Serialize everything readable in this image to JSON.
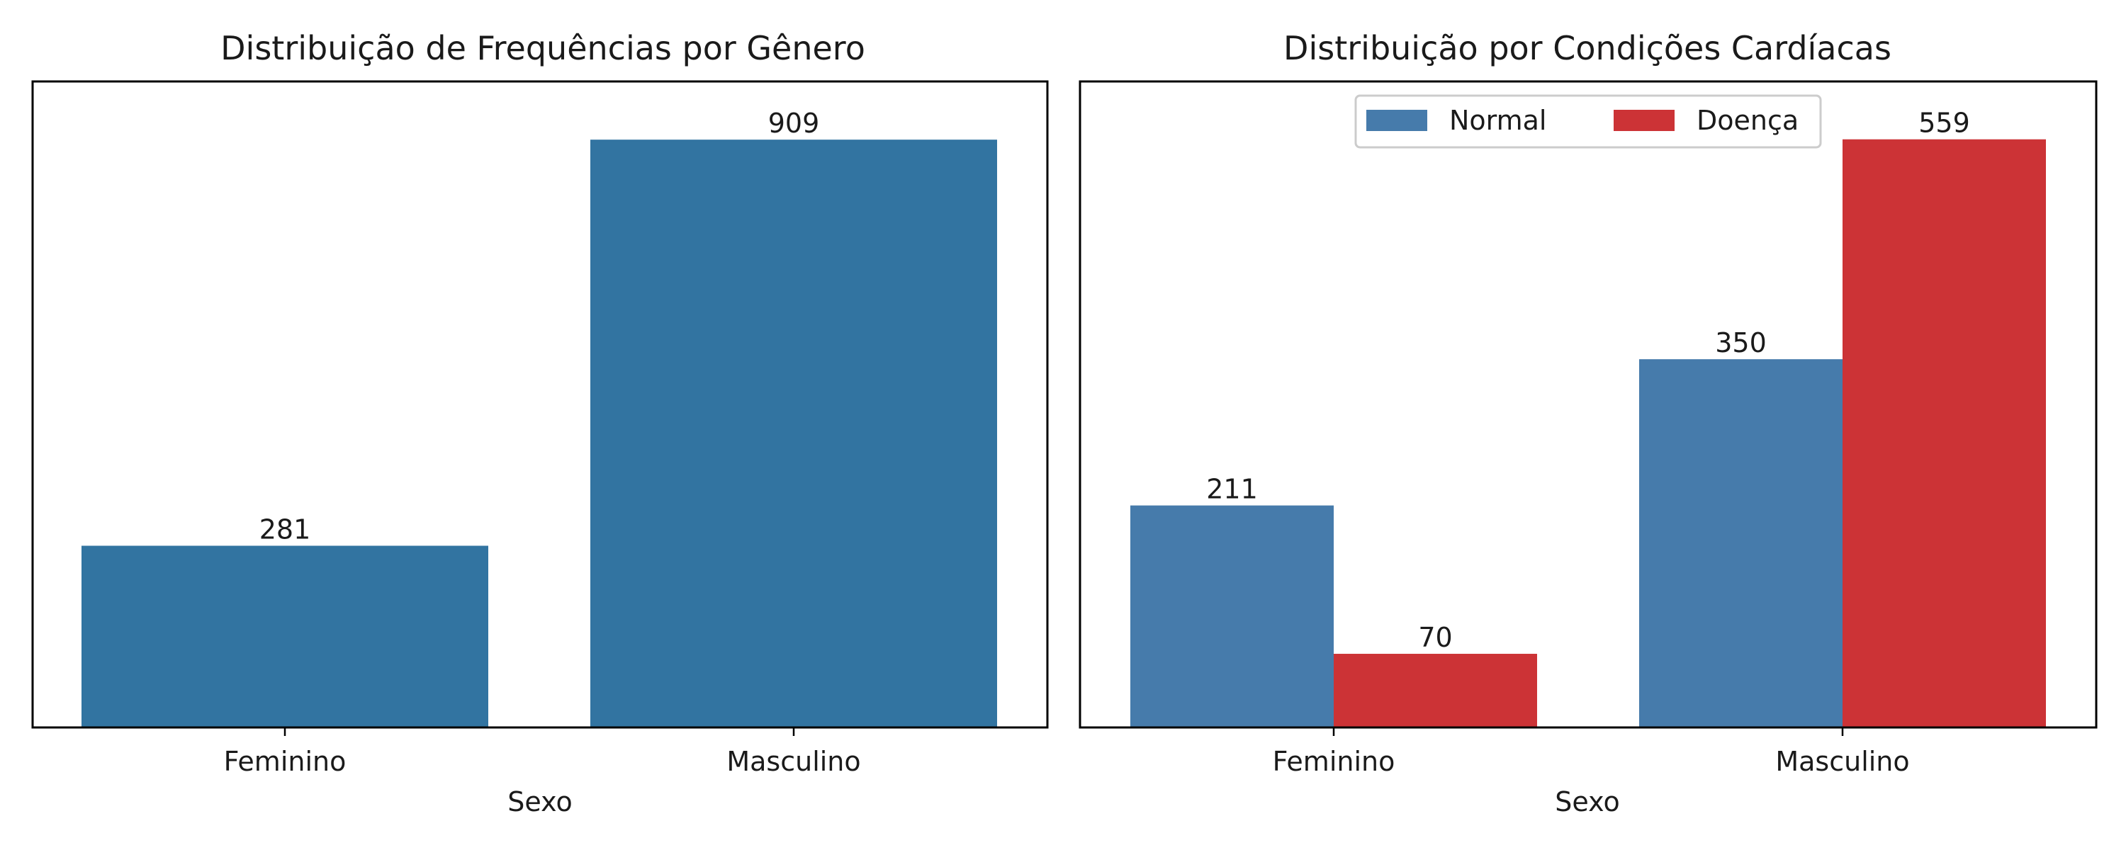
{
  "chart_data": [
    {
      "type": "bar",
      "title": "Distribuição de Frequências por Gênero",
      "xlabel": "Sexo",
      "ylabel": "",
      "categories": [
        "Feminino",
        "Masculino"
      ],
      "values": [
        281,
        909
      ],
      "data_labels": [
        "281",
        "909"
      ],
      "ylim": [
        0,
        999
      ],
      "grid": false,
      "y_ticks_visible": false,
      "colors": {
        "bar": "#3274a1"
      }
    },
    {
      "type": "bar",
      "title": "Distribuição por Condições Cardíacas",
      "xlabel": "Sexo",
      "ylabel": "",
      "categories": [
        "Feminino",
        "Masculino"
      ],
      "series": [
        {
          "name": "Normal",
          "values": [
            211,
            350
          ],
          "data_labels": [
            "211",
            "350"
          ],
          "color": "#467bab"
        },
        {
          "name": "Doença",
          "values": [
            70,
            559
          ],
          "data_labels": [
            "70",
            "559"
          ],
          "color": "#cc3336"
        }
      ],
      "ylim": [
        0,
        614
      ],
      "grid": false,
      "y_ticks_visible": false,
      "legend": {
        "placement": "upper center",
        "columns": 2
      }
    }
  ]
}
